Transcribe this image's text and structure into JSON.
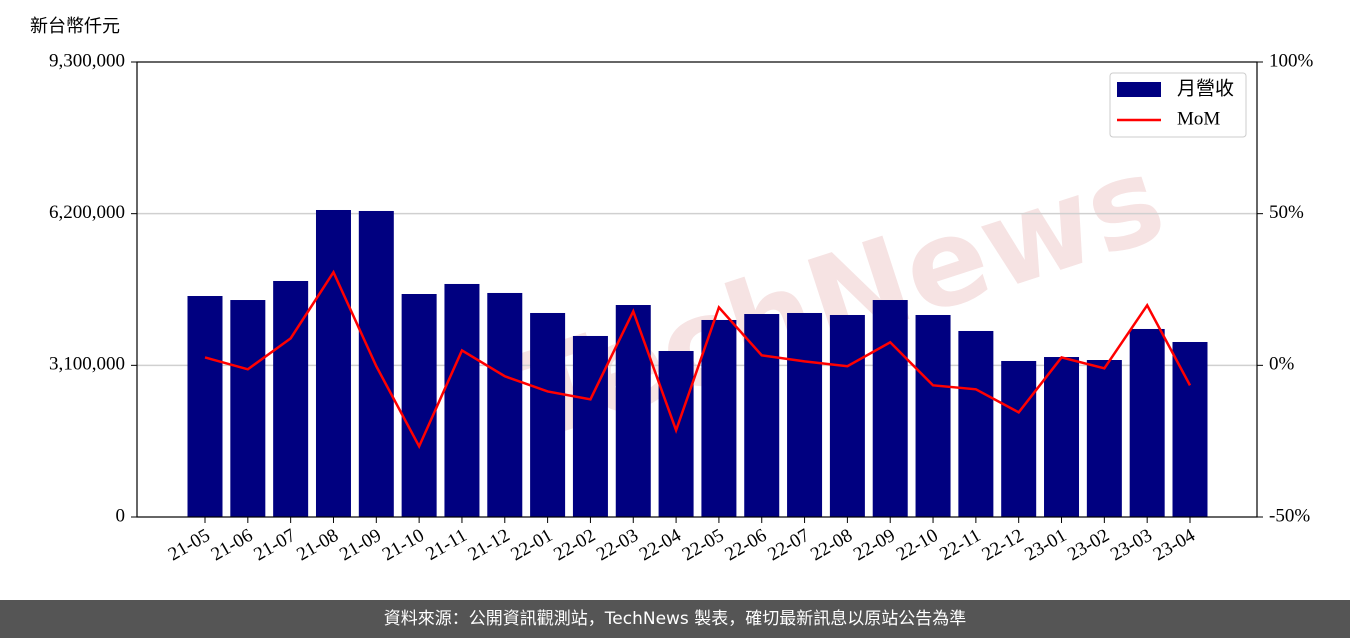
{
  "chart_data": {
    "type": "bar",
    "y_label": "新台幣仟元",
    "watermark": "TechNews",
    "footer": "資料來源：公開資訊觀測站，TechNews 製表，確切最新訊息以原站公告為準",
    "categories": [
      "21-05",
      "21-06",
      "21-07",
      "21-08",
      "21-09",
      "21-10",
      "21-11",
      "21-12",
      "22-01",
      "22-02",
      "22-03",
      "22-04",
      "22-05",
      "22-06",
      "22-07",
      "22-08",
      "22-09",
      "22-10",
      "22-11",
      "22-12",
      "23-01",
      "23-02",
      "23-03",
      "23-04"
    ],
    "series": [
      {
        "name": "月營收",
        "type": "bar",
        "color": "#000080",
        "axis": "y",
        "values": [
          4517000,
          4435000,
          4824000,
          6275000,
          6255000,
          4558000,
          4763000,
          4579000,
          4170000,
          3700000,
          4333000,
          3393000,
          4027000,
          4149000,
          4170000,
          4129000,
          4435000,
          4129000,
          3802000,
          3189000,
          3270000,
          3209000,
          3843000,
          3577000
        ]
      },
      {
        "name": "MoM",
        "type": "line",
        "color": "#ff0000",
        "axis": "y2",
        "values": [
          2.6,
          -1.3,
          8.9,
          30.7,
          -0.3,
          -26.7,
          4.9,
          -3.6,
          -8.6,
          -11.2,
          17.8,
          -21.4,
          19.1,
          3.3,
          1.3,
          -0.3,
          7.6,
          -6.6,
          -7.9,
          -15.5,
          2.6,
          -1.0,
          19.8,
          -6.6
        ]
      }
    ],
    "ylim": [
      0,
      9300000
    ],
    "yticks": [
      0,
      {
        "value": 3100000,
        "label": "3,100,000"
      },
      {
        "value": 6200000,
        "label": "6,200,000"
      },
      {
        "value": 9300000,
        "label": "9,300,000"
      }
    ],
    "y2lim": [
      -50,
      100
    ],
    "y2ticks": [
      {
        "value": -50,
        "label": "-50%"
      },
      {
        "value": 0,
        "label": "0%"
      },
      {
        "value": 50,
        "label": "50%"
      },
      {
        "value": 100,
        "label": "100%"
      }
    ],
    "grid": true,
    "legend": "upper right"
  }
}
